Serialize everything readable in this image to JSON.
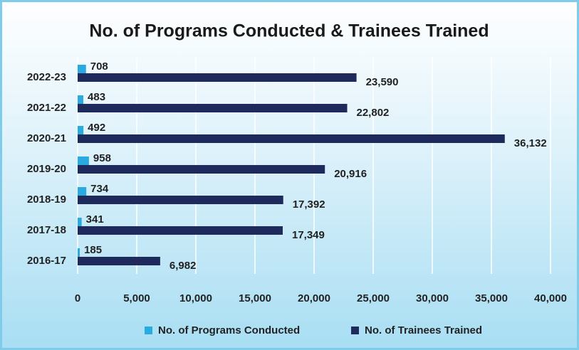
{
  "chart_data": {
    "type": "hbar",
    "title": "No. of Programs Conducted & Trainees Trained",
    "categories": [
      "2022-23",
      "2021-22",
      "2020-21",
      "2019-20",
      "2018-19",
      "2017-18",
      "2016-17"
    ],
    "series": [
      {
        "name": "No. of Programs Conducted",
        "color": "#29abe2",
        "values": [
          708,
          483,
          492,
          958,
          734,
          341,
          185
        ]
      },
      {
        "name": "No. of Trainees Trained",
        "color": "#1f2a5c",
        "values": [
          23590,
          22802,
          36132,
          20916,
          17392,
          17349,
          6982
        ],
        "value_labels": [
          "23,590",
          "22,802",
          "36,132",
          "20,916",
          "17,392",
          "17,349",
          "6,982"
        ]
      }
    ],
    "xlim": [
      0,
      40000
    ],
    "xticks": [
      0,
      {
        "value": 5000,
        "label": "5,000"
      },
      {
        "value": 10000,
        "label": "10,000"
      },
      {
        "value": 15000,
        "label": "15,000"
      },
      {
        "value": 20000,
        "label": "20,000"
      },
      {
        "value": 25000,
        "label": "25,000"
      },
      {
        "value": 30000,
        "label": "30,000"
      },
      {
        "value": 35000,
        "label": "35,000"
      },
      {
        "value": 40000,
        "label": "40,000"
      }
    ],
    "grid": true,
    "legend": "bottom"
  }
}
